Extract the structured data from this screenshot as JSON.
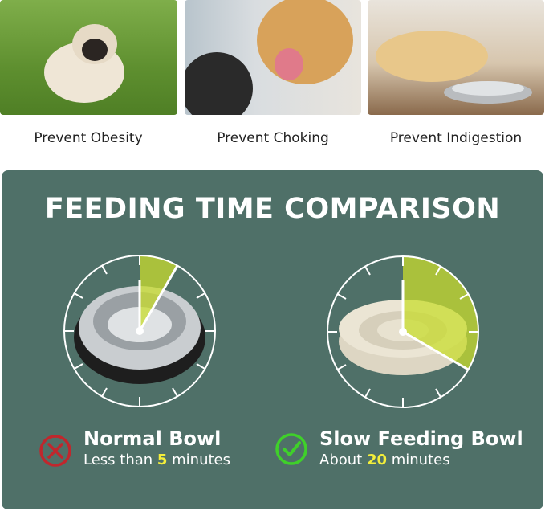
{
  "benefits": [
    {
      "label": "Prevent Obesity"
    },
    {
      "label": "Prevent Choking"
    },
    {
      "label": "Prevent Indigestion"
    }
  ],
  "comparison": {
    "title": "FEEDING TIME COMPARISON",
    "normal": {
      "name": "Normal Bowl",
      "prefix": "Less than ",
      "value": "5",
      "suffix": " minutes",
      "clock_minutes": 5,
      "icon": "x-circle-icon",
      "icon_color": "#c0272d"
    },
    "slow": {
      "name": "Slow Feeding Bowl",
      "prefix": "About ",
      "value": "20",
      "suffix": " minutes",
      "clock_minutes": 20,
      "icon": "check-circle-icon",
      "icon_color": "#3fd02a"
    }
  },
  "colors": {
    "panel": "#4f7068",
    "highlight": "#f4ee3a",
    "wedge": "#c8dc2e"
  }
}
